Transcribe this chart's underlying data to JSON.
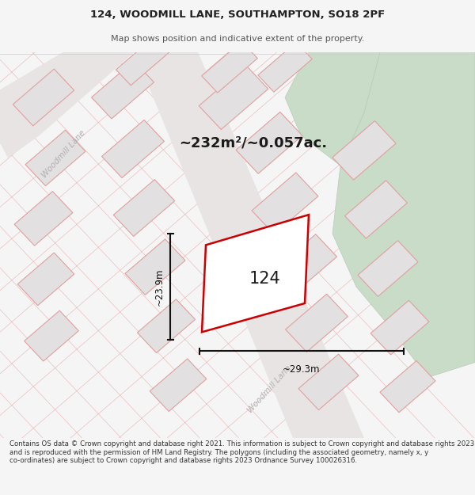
{
  "title_line1": "124, WOODMILL LANE, SOUTHAMPTON, SO18 2PF",
  "title_line2": "Map shows position and indicative extent of the property.",
  "area_text": "~232m²/~0.057ac.",
  "label_124": "124",
  "dim_vertical": "~23.9m",
  "dim_horizontal": "~29.3m",
  "street_label1": "Woodmill Lane",
  "street_label2": "Woodmill Lane",
  "footer_text": "Contains OS data © Crown copyright and database right 2021. This information is subject to Crown copyright and database rights 2023 and is reproduced with the permission of HM Land Registry. The polygons (including the associated geometry, namely x, y co-ordinates) are subject to Crown copyright and database rights 2023 Ordnance Survey 100026316.",
  "bg_color": "#f5f5f5",
  "map_bg": "#eeecec",
  "plot_fill": "#ffffff",
  "plot_edge": "#cc0000",
  "green_fill": "#c8dcc8",
  "gray_block": "#e2e0e0",
  "pink_line": "#e8a8a8",
  "dim_color": "#111111",
  "street_color": "#b0b0b0",
  "title_color": "#222222",
  "footer_color": "#333333"
}
